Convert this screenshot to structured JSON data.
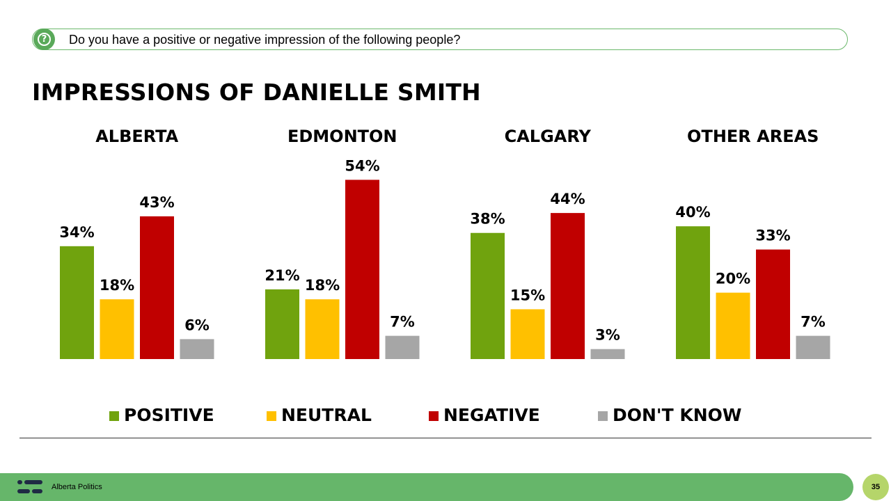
{
  "question": {
    "icon": "question-mark-icon",
    "text": "Do you have a positive or negative impression of the following people?"
  },
  "title": "IMPRESSIONS OF DANIELLE SMITH",
  "chart_data": {
    "type": "bar",
    "grouped": true,
    "groups": [
      "ALBERTA",
      "EDMONTON",
      "CALGARY",
      "OTHER AREAS"
    ],
    "series": [
      {
        "name": "POSITIVE",
        "color": "#70a30e",
        "values": [
          34,
          21,
          38,
          40
        ],
        "labels": [
          "34%",
          "21%",
          "38%",
          "40%"
        ]
      },
      {
        "name": "NEUTRAL",
        "color": "#ffc000",
        "values": [
          18,
          18,
          15,
          20
        ],
        "labels": [
          "18%",
          "18%",
          "15%",
          "20%"
        ]
      },
      {
        "name": "NEGATIVE",
        "color": "#c00000",
        "values": [
          43,
          54,
          44,
          33
        ],
        "labels": [
          "43%",
          "54%",
          "44%",
          "33%"
        ]
      },
      {
        "name": "DON'T KNOW",
        "color": "#a6a6a6",
        "values": [
          6,
          7,
          3,
          7
        ],
        "labels": [
          "6%",
          "7%",
          "3%",
          "7%"
        ]
      }
    ],
    "value_unit": "%",
    "ylim": [
      0,
      60
    ],
    "legend_position": "bottom",
    "grid": false
  },
  "footer": {
    "organization": "Alberta Politics",
    "logo_icon": "brand-logo-icon",
    "page_number": "35",
    "accent": "#66b66a"
  }
}
